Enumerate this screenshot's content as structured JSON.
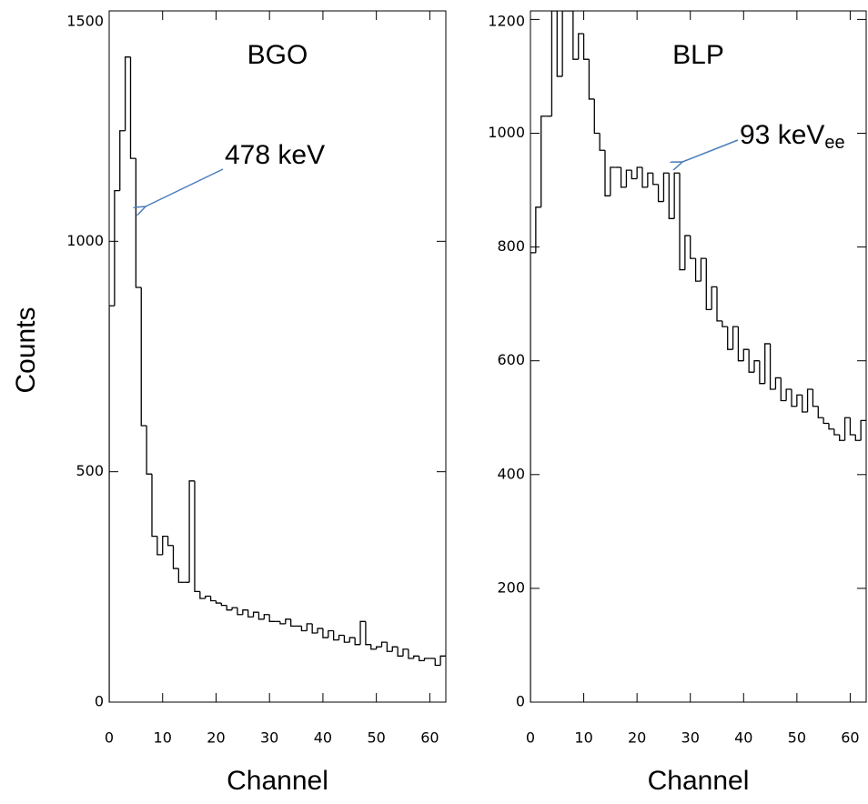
{
  "chart_data": [
    {
      "type": "histogram",
      "title": "BGO",
      "xlabel": "Channel",
      "ylabel": "Counts",
      "color": "#000000",
      "bins": [
        0,
        1,
        2,
        3,
        4,
        5,
        6,
        7,
        8,
        9,
        10,
        11,
        12,
        13,
        14,
        15,
        16,
        17,
        18,
        19,
        20,
        21,
        22,
        23,
        24,
        25,
        26,
        27,
        28,
        29,
        30,
        31,
        32,
        33,
        34,
        35,
        36,
        37,
        38,
        39,
        40,
        41,
        42,
        43,
        44,
        45,
        46,
        47,
        48,
        49,
        50,
        51,
        52,
        53,
        54,
        55,
        56,
        57,
        58,
        59,
        60,
        61,
        62,
        63
      ],
      "values": [
        860,
        1110,
        1240,
        1400,
        1180,
        900,
        600,
        495,
        360,
        320,
        360,
        340,
        290,
        260,
        260,
        480,
        240,
        225,
        230,
        220,
        215,
        210,
        200,
        205,
        190,
        200,
        185,
        195,
        180,
        190,
        175,
        175,
        170,
        180,
        165,
        165,
        155,
        170,
        150,
        160,
        140,
        155,
        135,
        145,
        130,
        140,
        125,
        175,
        125,
        115,
        120,
        130,
        110,
        120,
        100,
        115,
        95,
        100,
        90,
        95,
        95,
        80,
        100
      ],
      "xlim": [
        0,
        63
      ],
      "ylim": [
        0,
        1500
      ],
      "xticks": [
        0,
        10,
        20,
        30,
        40,
        50,
        60
      ],
      "yticks": [
        0,
        500,
        1000,
        1500
      ],
      "annotations": [
        {
          "text": "478 keV",
          "arrow_color": "#4a7ebb"
        }
      ]
    },
    {
      "type": "histogram",
      "title": "BLP",
      "xlabel": "Channel",
      "color": "#000000",
      "bins": [
        0,
        1,
        2,
        3,
        4,
        5,
        6,
        7,
        8,
        9,
        10,
        11,
        12,
        13,
        14,
        15,
        16,
        17,
        18,
        19,
        20,
        21,
        22,
        23,
        24,
        25,
        26,
        27,
        28,
        29,
        30,
        31,
        32,
        33,
        34,
        35,
        36,
        37,
        38,
        39,
        40,
        41,
        42,
        43,
        44,
        45,
        46,
        47,
        48,
        49,
        50,
        51,
        52,
        53,
        54,
        55,
        56,
        57,
        58,
        59,
        60,
        61,
        62,
        63
      ],
      "values": [
        790,
        870,
        1030,
        1030,
        1215,
        1100,
        1215,
        1215,
        1130,
        1175,
        1130,
        1060,
        1000,
        970,
        890,
        940,
        940,
        905,
        935,
        920,
        940,
        905,
        930,
        910,
        880,
        930,
        850,
        930,
        760,
        820,
        780,
        740,
        780,
        690,
        730,
        670,
        660,
        620,
        660,
        600,
        620,
        580,
        600,
        560,
        630,
        550,
        570,
        530,
        550,
        520,
        540,
        510,
        550,
        520,
        500,
        490,
        480,
        470,
        460,
        500,
        470,
        460,
        495
      ],
      "xlim": [
        0,
        63
      ],
      "ylim": [
        0,
        1215
      ],
      "xticks": [
        0,
        10,
        20,
        30,
        40,
        50,
        60
      ],
      "yticks": [
        0,
        200,
        400,
        600,
        800,
        1000,
        1200
      ],
      "annotations": [
        {
          "text": "93 keV",
          "subscript": "ee",
          "arrow_color": "#4a7ebb"
        }
      ]
    }
  ]
}
